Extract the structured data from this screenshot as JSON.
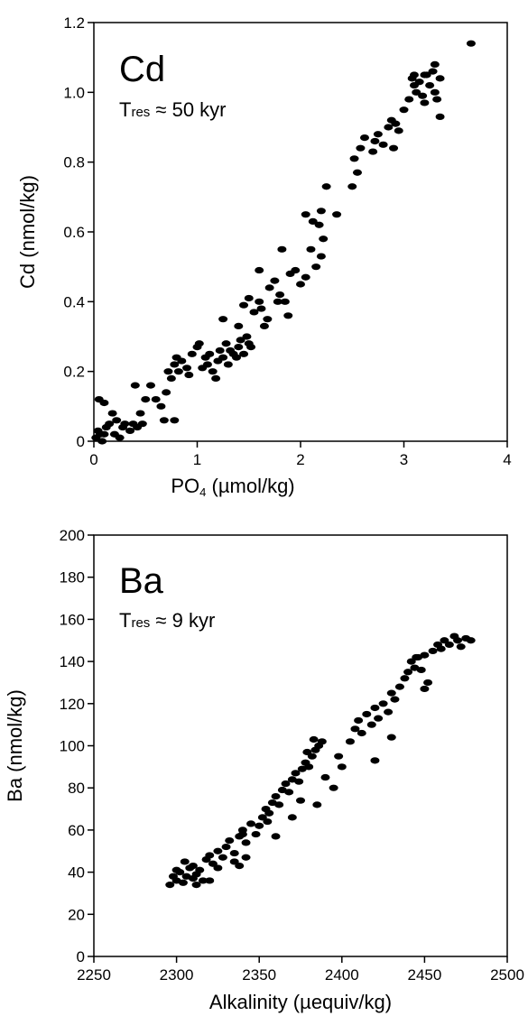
{
  "chart_data": [
    {
      "type": "scatter",
      "panel_label": "Cd",
      "residence_time": {
        "symbol": "T",
        "subscript": "res",
        "text": " ≈ 50 kyr"
      },
      "xlabel": {
        "main": "PO",
        "subscript": "4",
        "units": " (µmol/kg)"
      },
      "ylabel": "Cd  (nmol/kg)",
      "xlim": [
        0,
        4
      ],
      "ylim": [
        0,
        1.2
      ],
      "x_ticks": [
        "0",
        "1",
        "2",
        "3",
        "4"
      ],
      "y_ticks": [
        "0",
        "0.2",
        "0.4",
        "0.6",
        "0.8",
        "1.0",
        "1.2"
      ],
      "grid": false,
      "series": [
        {
          "color": "#000000",
          "points": [
            [
              0.02,
              0.01
            ],
            [
              0.04,
              0.03
            ],
            [
              0.06,
              0.02
            ],
            [
              0.08,
              0.0
            ],
            [
              0.1,
              0.02
            ],
            [
              0.12,
              0.04
            ],
            [
              0.05,
              0.12
            ],
            [
              0.1,
              0.11
            ],
            [
              0.15,
              0.05
            ],
            [
              0.18,
              0.08
            ],
            [
              0.2,
              0.02
            ],
            [
              0.22,
              0.06
            ],
            [
              0.25,
              0.01
            ],
            [
              0.28,
              0.04
            ],
            [
              0.3,
              0.05
            ],
            [
              0.35,
              0.03
            ],
            [
              0.38,
              0.05
            ],
            [
              0.42,
              0.04
            ],
            [
              0.45,
              0.08
            ],
            [
              0.47,
              0.05
            ],
            [
              0.4,
              0.16
            ],
            [
              0.5,
              0.12
            ],
            [
              0.55,
              0.16
            ],
            [
              0.6,
              0.12
            ],
            [
              0.65,
              0.1
            ],
            [
              0.7,
              0.14
            ],
            [
              0.72,
              0.2
            ],
            [
              0.75,
              0.18
            ],
            [
              0.78,
              0.22
            ],
            [
              0.8,
              0.24
            ],
            [
              0.82,
              0.2
            ],
            [
              0.85,
              0.23
            ],
            [
              0.9,
              0.21
            ],
            [
              0.92,
              0.19
            ],
            [
              0.68,
              0.06
            ],
            [
              0.78,
              0.06
            ],
            [
              0.95,
              0.25
            ],
            [
              1.0,
              0.27
            ],
            [
              1.02,
              0.28
            ],
            [
              1.05,
              0.21
            ],
            [
              1.08,
              0.24
            ],
            [
              1.1,
              0.22
            ],
            [
              1.12,
              0.25
            ],
            [
              1.15,
              0.2
            ],
            [
              1.18,
              0.18
            ],
            [
              1.2,
              0.23
            ],
            [
              1.22,
              0.26
            ],
            [
              1.25,
              0.24
            ],
            [
              1.28,
              0.28
            ],
            [
              1.3,
              0.22
            ],
            [
              1.32,
              0.26
            ],
            [
              1.35,
              0.25
            ],
            [
              1.38,
              0.24
            ],
            [
              1.4,
              0.27
            ],
            [
              1.42,
              0.29
            ],
            [
              1.45,
              0.25
            ],
            [
              1.48,
              0.3
            ],
            [
              1.5,
              0.28
            ],
            [
              1.52,
              0.27
            ],
            [
              1.25,
              0.35
            ],
            [
              1.4,
              0.33
            ],
            [
              1.45,
              0.39
            ],
            [
              1.5,
              0.41
            ],
            [
              1.55,
              0.37
            ],
            [
              1.6,
              0.4
            ],
            [
              1.62,
              0.38
            ],
            [
              1.65,
              0.33
            ],
            [
              1.68,
              0.35
            ],
            [
              1.6,
              0.49
            ],
            [
              1.7,
              0.44
            ],
            [
              1.75,
              0.46
            ],
            [
              1.78,
              0.4
            ],
            [
              1.8,
              0.42
            ],
            [
              1.85,
              0.4
            ],
            [
              1.88,
              0.36
            ],
            [
              1.82,
              0.55
            ],
            [
              1.9,
              0.48
            ],
            [
              1.95,
              0.49
            ],
            [
              2.0,
              0.45
            ],
            [
              2.05,
              0.47
            ],
            [
              2.1,
              0.55
            ],
            [
              2.15,
              0.5
            ],
            [
              2.2,
              0.53
            ],
            [
              2.22,
              0.58
            ],
            [
              2.18,
              0.62
            ],
            [
              2.05,
              0.65
            ],
            [
              2.12,
              0.63
            ],
            [
              2.2,
              0.66
            ],
            [
              2.25,
              0.73
            ],
            [
              2.35,
              0.65
            ],
            [
              2.5,
              0.73
            ],
            [
              2.55,
              0.77
            ],
            [
              2.52,
              0.81
            ],
            [
              2.58,
              0.84
            ],
            [
              2.62,
              0.87
            ],
            [
              2.7,
              0.83
            ],
            [
              2.72,
              0.86
            ],
            [
              2.75,
              0.88
            ],
            [
              2.8,
              0.85
            ],
            [
              2.85,
              0.9
            ],
            [
              2.88,
              0.92
            ],
            [
              2.92,
              0.91
            ],
            [
              2.95,
              0.89
            ],
            [
              2.9,
              0.84
            ],
            [
              3.0,
              0.95
            ],
            [
              3.05,
              0.98
            ],
            [
              3.08,
              1.04
            ],
            [
              3.1,
              1.02
            ],
            [
              3.12,
              1.0
            ],
            [
              3.15,
              1.03
            ],
            [
              3.18,
              0.99
            ],
            [
              3.2,
              0.97
            ],
            [
              3.22,
              1.05
            ],
            [
              3.25,
              1.02
            ],
            [
              3.28,
              1.06
            ],
            [
              3.3,
              1.0
            ],
            [
              3.32,
              0.98
            ],
            [
              3.35,
              1.04
            ],
            [
              3.3,
              1.08
            ],
            [
              3.2,
              1.05
            ],
            [
              3.1,
              1.05
            ],
            [
              3.35,
              0.93
            ],
            [
              3.65,
              1.14
            ]
          ]
        }
      ]
    },
    {
      "type": "scatter",
      "panel_label": "Ba",
      "residence_time": {
        "symbol": "T",
        "subscript": "res",
        "text": " ≈ 9 kyr"
      },
      "xlabel": {
        "main": "Alkalinity (µequiv/kg)",
        "subscript": "",
        "units": ""
      },
      "ylabel": "Ba (nmol/kg)",
      "xlim": [
        2250,
        2500
      ],
      "ylim": [
        0,
        200
      ],
      "x_ticks": [
        "2250",
        "2300",
        "2350",
        "2400",
        "2450",
        "2500"
      ],
      "y_ticks": [
        "0",
        "20",
        "40",
        "60",
        "80",
        "100",
        "120",
        "140",
        "160",
        "180",
        "200"
      ],
      "grid": false,
      "series": [
        {
          "color": "#000000",
          "points": [
            [
              2296,
              34
            ],
            [
              2298,
              38
            ],
            [
              2300,
              36
            ],
            [
              2302,
              40
            ],
            [
              2304,
              35
            ],
            [
              2306,
              38
            ],
            [
              2308,
              42
            ],
            [
              2310,
              37
            ],
            [
              2312,
              34
            ],
            [
              2314,
              41
            ],
            [
              2300,
              41
            ],
            [
              2305,
              45
            ],
            [
              2310,
              43
            ],
            [
              2312,
              39
            ],
            [
              2316,
              36
            ],
            [
              2318,
              46
            ],
            [
              2320,
              48
            ],
            [
              2322,
              44
            ],
            [
              2325,
              50
            ],
            [
              2328,
              47
            ],
            [
              2330,
              52
            ],
            [
              2332,
              55
            ],
            [
              2335,
              49
            ],
            [
              2338,
              57
            ],
            [
              2340,
              60
            ],
            [
              2342,
              54
            ],
            [
              2345,
              63
            ],
            [
              2348,
              58
            ],
            [
              2350,
              62
            ],
            [
              2352,
              66
            ],
            [
              2354,
              70
            ],
            [
              2356,
              68
            ],
            [
              2358,
              73
            ],
            [
              2360,
              76
            ],
            [
              2362,
              72
            ],
            [
              2364,
              79
            ],
            [
              2366,
              82
            ],
            [
              2368,
              78
            ],
            [
              2370,
              84
            ],
            [
              2372,
              87
            ],
            [
              2374,
              83
            ],
            [
              2376,
              89
            ],
            [
              2378,
              92
            ],
            [
              2380,
              90
            ],
            [
              2382,
              95
            ],
            [
              2384,
              98
            ],
            [
              2386,
              100
            ],
            [
              2388,
              102
            ],
            [
              2383,
              103
            ],
            [
              2379,
              97
            ],
            [
              2385,
              72
            ],
            [
              2390,
              85
            ],
            [
              2395,
              80
            ],
            [
              2398,
              95
            ],
            [
              2400,
              90
            ],
            [
              2405,
              102
            ],
            [
              2408,
              108
            ],
            [
              2410,
              112
            ],
            [
              2412,
              106
            ],
            [
              2415,
              115
            ],
            [
              2418,
              110
            ],
            [
              2420,
              118
            ],
            [
              2422,
              113
            ],
            [
              2425,
              120
            ],
            [
              2428,
              116
            ],
            [
              2430,
              125
            ],
            [
              2432,
              122
            ],
            [
              2435,
              128
            ],
            [
              2438,
              132
            ],
            [
              2440,
              135
            ],
            [
              2442,
              140
            ],
            [
              2444,
              137
            ],
            [
              2446,
              142
            ],
            [
              2448,
              136
            ],
            [
              2450,
              143
            ],
            [
              2452,
              130
            ],
            [
              2455,
              145
            ],
            [
              2458,
              148
            ],
            [
              2460,
              146
            ],
            [
              2462,
              150
            ],
            [
              2465,
              148
            ],
            [
              2468,
              152
            ],
            [
              2470,
              150
            ],
            [
              2472,
              147
            ],
            [
              2475,
              151
            ],
            [
              2478,
              150
            ],
            [
              2420,
              93
            ],
            [
              2430,
              104
            ],
            [
              2450,
              127
            ],
            [
              2445,
              142
            ],
            [
              2338,
              43
            ],
            [
              2342,
              47
            ],
            [
              2360,
              57
            ],
            [
              2375,
              74
            ],
            [
              2370,
              66
            ],
            [
              2355,
              64
            ],
            [
              2340,
              58
            ],
            [
              2320,
              36
            ],
            [
              2325,
              42
            ],
            [
              2335,
              45
            ]
          ]
        }
      ]
    }
  ]
}
